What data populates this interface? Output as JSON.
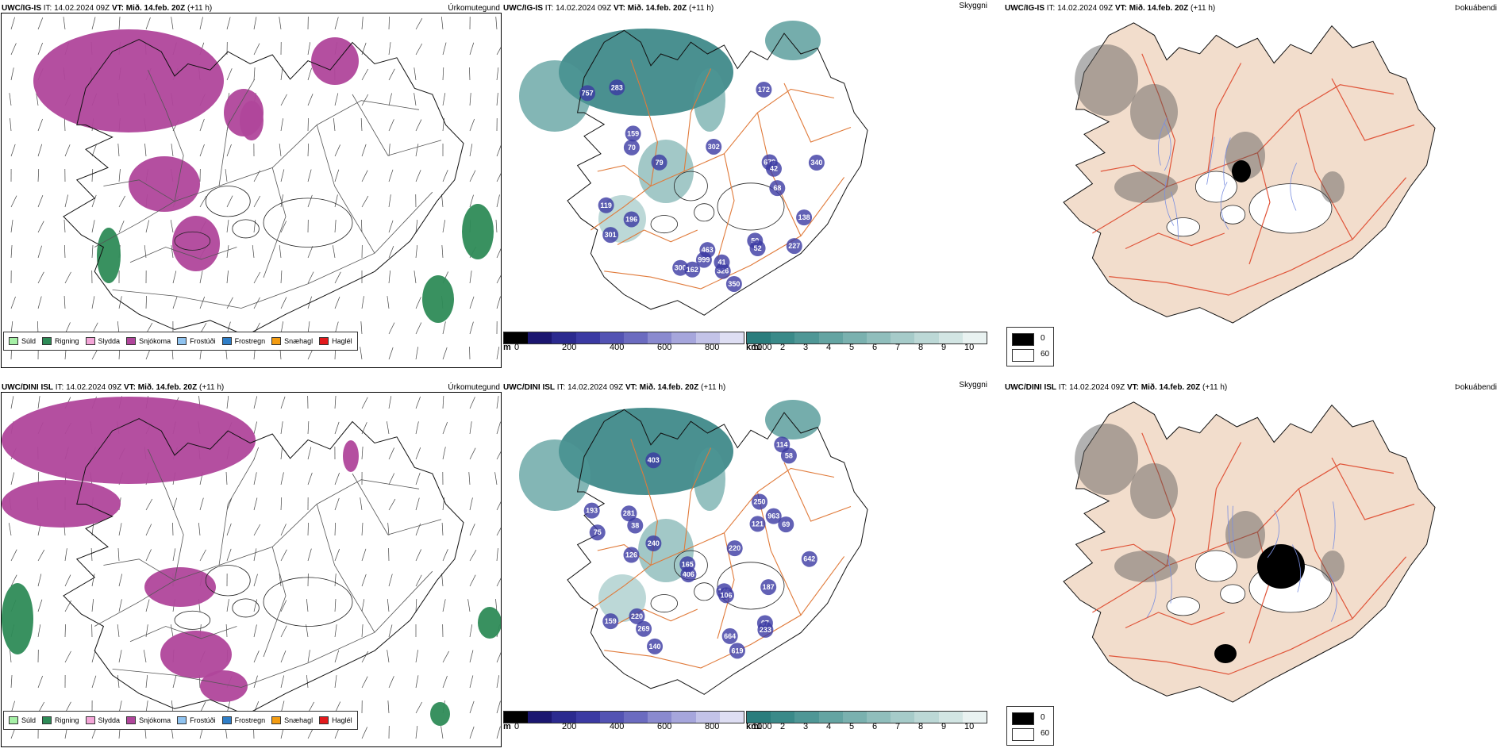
{
  "rows": [
    {
      "id": "top",
      "model": "UWC/IG-IS",
      "it_label": "IT:",
      "it_value": "14.02.2024 09Z",
      "vt_label": "VT:",
      "vt_value": "Mið. 14.feb. 20Z",
      "lead": "(+11 h)",
      "panel1_title_right": "Úrkomutegund",
      "panel2_title_right": "Skyggni",
      "panel3_title_right": "Þokuábendi",
      "cloud_labels": [
        "300",
        "463",
        "302",
        "757",
        "340",
        "301",
        "999",
        "119",
        "679",
        "159",
        "196",
        "227",
        "162",
        "350",
        "172",
        "326",
        "50",
        "52",
        "138",
        "42",
        "283",
        "68",
        "70",
        "79",
        "41"
      ]
    },
    {
      "id": "bottom",
      "model": "UWC/DINI ISL",
      "it_label": "IT:",
      "it_value": "14.02.2024 09Z",
      "vt_label": "VT:",
      "vt_value": "Mið. 14.feb. 20Z",
      "lead": "(+11 h)",
      "panel1_title_right": "Úrkomutegund",
      "panel2_title_right": "Skyggni",
      "panel3_title_right": "Þokuábendi",
      "cloud_labels": [
        "619",
        "403",
        "220",
        "281",
        "963",
        "664",
        "642",
        "240",
        "406",
        "269",
        "159",
        "193",
        "165",
        "146",
        "121",
        "114",
        "75",
        "58",
        "187",
        "69",
        "67",
        "106",
        "140",
        "233",
        "220",
        "250",
        "126",
        "38"
      ]
    }
  ],
  "precip_legend": [
    {
      "label": "Súld",
      "color": "#a6f0a6"
    },
    {
      "label": "Rigning",
      "color": "#2e8b57"
    },
    {
      "label": "Slydda",
      "color": "#f4a6d8"
    },
    {
      "label": "Snjókoma",
      "color": "#b0469b"
    },
    {
      "label": "Frostúði",
      "color": "#8fc3f0"
    },
    {
      "label": "Frostregn",
      "color": "#2f7ec7"
    },
    {
      "label": "Snæhagl",
      "color": "#f39c12"
    },
    {
      "label": "Haglél",
      "color": "#e31a1c"
    }
  ],
  "cloudbase_scale": {
    "unit": "m",
    "ticks": [
      "0",
      "200",
      "400",
      "600",
      "800",
      "1000"
    ],
    "colors": [
      "#000000",
      "#1b1670",
      "#2b2a8f",
      "#3b3aa3",
      "#5353b3",
      "#6b6bc0",
      "#8a8acf",
      "#a6a6dc",
      "#c3c3e8",
      "#dedef3"
    ]
  },
  "visibility_scale": {
    "unit": "km",
    "ticks": [
      "1",
      "2",
      "3",
      "4",
      "5",
      "6",
      "7",
      "8",
      "9",
      "10"
    ],
    "colors": [
      "#2a7d7d",
      "#3a8a89",
      "#4f9796",
      "#64a4a2",
      "#7ab1af",
      "#90bebc",
      "#a6cbc9",
      "#bcd8d6",
      "#d2e5e3",
      "#e9f2f1"
    ]
  },
  "fog_key": {
    "values": [
      "0",
      "60"
    ],
    "colors": [
      "#000000",
      "#ffffff"
    ]
  },
  "colors": {
    "land_fill_fog": "#f2ddcc",
    "road": "#e07a3a",
    "road_fog": "#e0553a",
    "river": "#7b8fe0",
    "coast": "#222222"
  }
}
